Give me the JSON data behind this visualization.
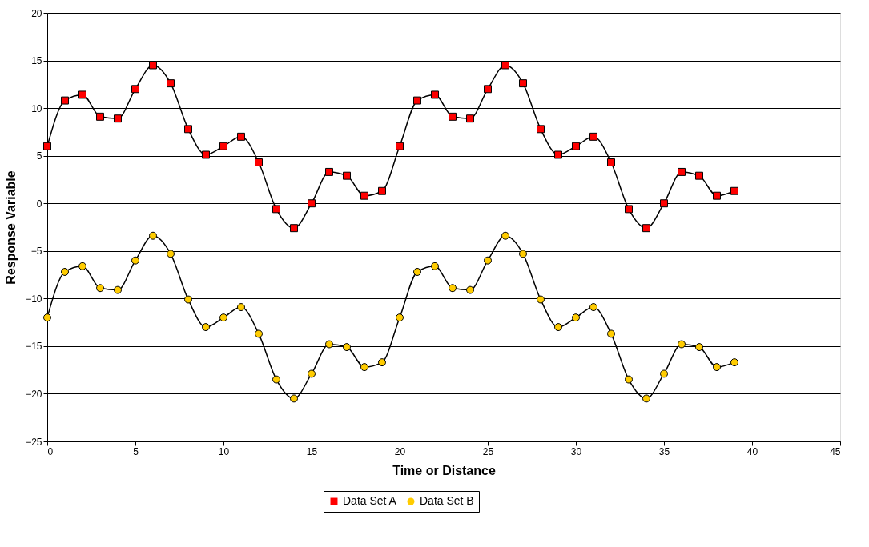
{
  "chart_data": {
    "type": "line",
    "xlabel": "Time or Distance",
    "ylabel": "Response Variable",
    "x": [
      0,
      1,
      2,
      3,
      4,
      5,
      6,
      7,
      8,
      9,
      10,
      11,
      12,
      13,
      14,
      15,
      16,
      17,
      18,
      19,
      20,
      21,
      22,
      23,
      24,
      25,
      26,
      27,
      28,
      29,
      30,
      31,
      32,
      33,
      34,
      35,
      36,
      37,
      38,
      39
    ],
    "series": [
      {
        "name": "Data Set A",
        "color": "#ff0000",
        "marker": "square",
        "values": [
          6,
          10.8,
          11.4,
          9.1,
          8.9,
          12,
          14.5,
          12.6,
          7.8,
          5.1,
          6,
          7,
          4.3,
          -0.6,
          -2.6,
          0,
          3.3,
          2.9,
          0.8,
          1.3,
          6,
          10.8,
          11.4,
          9.1,
          8.9,
          12,
          14.5,
          12.6,
          7.8,
          5.1,
          6,
          7,
          4.3,
          -0.6,
          -2.6,
          0,
          3.3,
          2.9,
          0.8,
          1.3
        ]
      },
      {
        "name": "Data Set B",
        "color": "#ffcc00",
        "marker": "circle",
        "values": [
          -12,
          -7.2,
          -6.6,
          -8.9,
          -9.1,
          -6,
          -3.4,
          -5.3,
          -10.1,
          -13,
          -12,
          -10.9,
          -13.7,
          -18.5,
          -20.5,
          -17.9,
          -14.8,
          -15.1,
          -17.2,
          -16.7,
          -12,
          -7.2,
          -6.6,
          -8.9,
          -9.1,
          -6,
          -3.4,
          -5.3,
          -10.1,
          -13,
          -12,
          -10.9,
          -13.7,
          -18.5,
          -20.5,
          -17.9,
          -14.8,
          -15.1,
          -17.2,
          -16.7
        ]
      }
    ],
    "xlim": [
      0,
      45
    ],
    "xticks": [
      0,
      5,
      10,
      15,
      20,
      25,
      30,
      35,
      40,
      45
    ],
    "ylim": [
      -25,
      20
    ],
    "yticks": [
      -25,
      -20,
      -15,
      -10,
      -5,
      0,
      5,
      10,
      15,
      20
    ],
    "grid": "y",
    "legend": "bottom",
    "line_style": "solid"
  }
}
